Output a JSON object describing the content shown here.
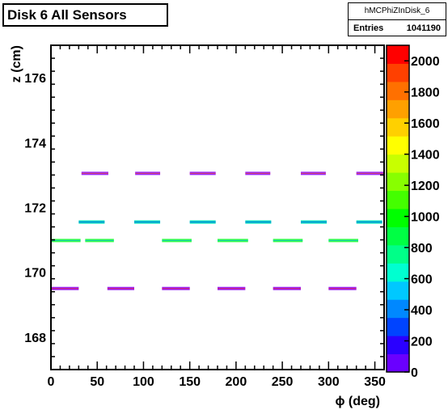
{
  "title": "Disk 6 All Sensors",
  "stats": {
    "name": "hMCPhiZInDisk_6",
    "entries_label": "Entries",
    "entries_value": "1041190"
  },
  "chart_data": {
    "type": "heatmap",
    "xlabel": "ϕ (deg)",
    "ylabel": "z (cm)",
    "xlim": [
      0,
      360
    ],
    "ylim": [
      167,
      177
    ],
    "x_ticks": [
      0,
      50,
      100,
      150,
      200,
      250,
      300,
      350
    ],
    "y_ticks": [
      168,
      170,
      172,
      174,
      176
    ],
    "z_range": [
      0,
      2100
    ],
    "z_ticks": [
      0,
      200,
      400,
      600,
      800,
      1000,
      1200,
      1400,
      1600,
      1800,
      2000
    ],
    "grid": false,
    "palette": [
      "#6a00ff",
      "#2a00ff",
      "#0044ff",
      "#0088ff",
      "#00c8ff",
      "#00ffd0",
      "#00ff88",
      "#00ff44",
      "#00ff00",
      "#44ff00",
      "#88ff00",
      "#c8ff00",
      "#ffff00",
      "#ffd000",
      "#ffa000",
      "#ff7000",
      "#ff4000",
      "#ff0000"
    ],
    "rows": [
      {
        "z": 173.05,
        "segments": [
          [
            33,
            62
          ],
          [
            91,
            118
          ],
          [
            150,
            178
          ],
          [
            210,
            237
          ],
          [
            270,
            297
          ],
          [
            330,
            360
          ]
        ],
        "main_color": "#9922ff",
        "accent_color": "#ff6600"
      },
      {
        "z": 171.55,
        "segments": [
          [
            30,
            58
          ],
          [
            90,
            118
          ],
          [
            150,
            178
          ],
          [
            210,
            238
          ],
          [
            270,
            298
          ],
          [
            330,
            358
          ]
        ],
        "main_color": "#00ddbb",
        "accent_color": "#2244ff"
      },
      {
        "z": 170.98,
        "segments": [
          [
            0,
            32
          ],
          [
            37,
            68
          ],
          [
            120,
            152
          ],
          [
            180,
            213
          ],
          [
            240,
            272
          ],
          [
            300,
            332
          ]
        ],
        "main_color": "#33ff44",
        "accent_color": "#00aaff"
      },
      {
        "z": 169.5,
        "segments": [
          [
            0,
            30
          ],
          [
            61,
            90
          ],
          [
            120,
            150
          ],
          [
            180,
            210
          ],
          [
            240,
            270
          ],
          [
            300,
            330
          ]
        ],
        "main_color": "#9922ff",
        "accent_color": "#ff2200"
      }
    ]
  }
}
